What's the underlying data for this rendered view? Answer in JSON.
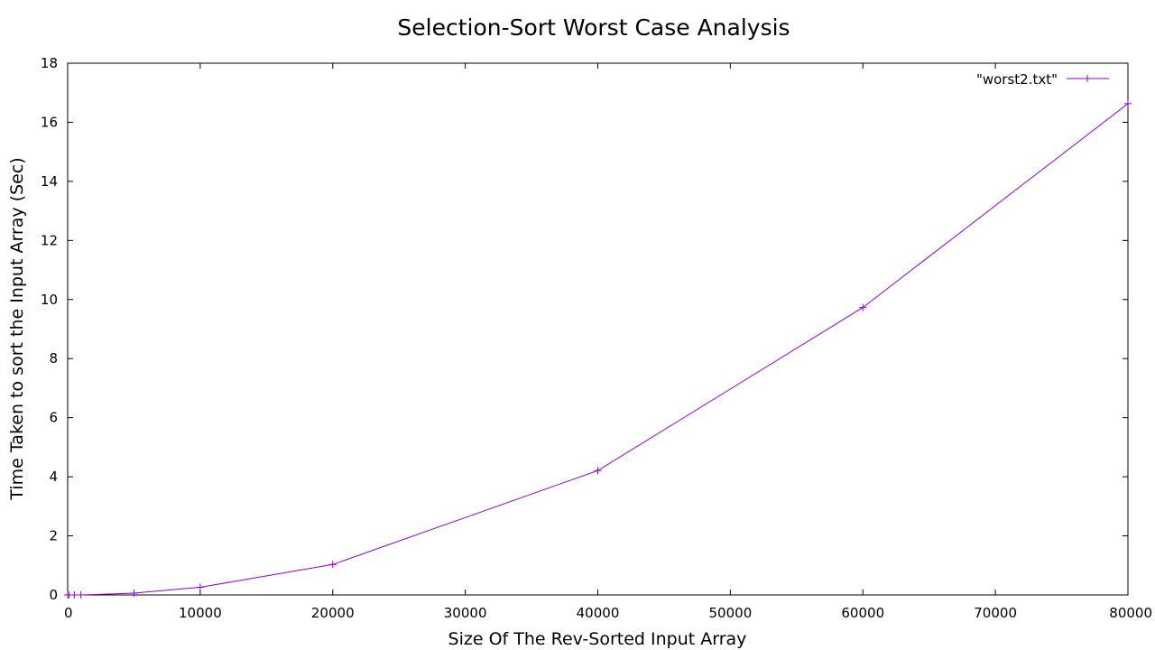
{
  "chart_data": {
    "type": "line",
    "title": "Selection-Sort Worst Case Analysis",
    "xlabel": "Size Of The Rev-Sorted Input Array",
    "ylabel": "Time Taken to sort the Input Array (Sec)",
    "xlim": [
      0,
      80000
    ],
    "ylim": [
      0,
      18
    ],
    "x_ticks": [
      "0",
      "10000",
      "20000",
      "30000",
      "40000",
      "50000",
      "60000",
      "70000",
      "80000"
    ],
    "y_ticks": [
      "0",
      "2",
      "4",
      "6",
      "8",
      "10",
      "12",
      "14",
      "16",
      "18"
    ],
    "grid": false,
    "legend_position": "top-right",
    "series": [
      {
        "name": "\"worst2.txt\"",
        "color": "#9400d3",
        "marker": "plus",
        "points": [
          {
            "x": 0,
            "y": 0.0
          },
          {
            "x": 100,
            "y": 0.0
          },
          {
            "x": 500,
            "y": 0.0
          },
          {
            "x": 1000,
            "y": 0.0
          },
          {
            "x": 5000,
            "y": 0.06
          },
          {
            "x": 10000,
            "y": 0.26
          },
          {
            "x": 20000,
            "y": 1.03
          },
          {
            "x": 40000,
            "y": 4.21
          },
          {
            "x": 60000,
            "y": 9.73
          },
          {
            "x": 80000,
            "y": 16.63
          }
        ]
      }
    ]
  }
}
